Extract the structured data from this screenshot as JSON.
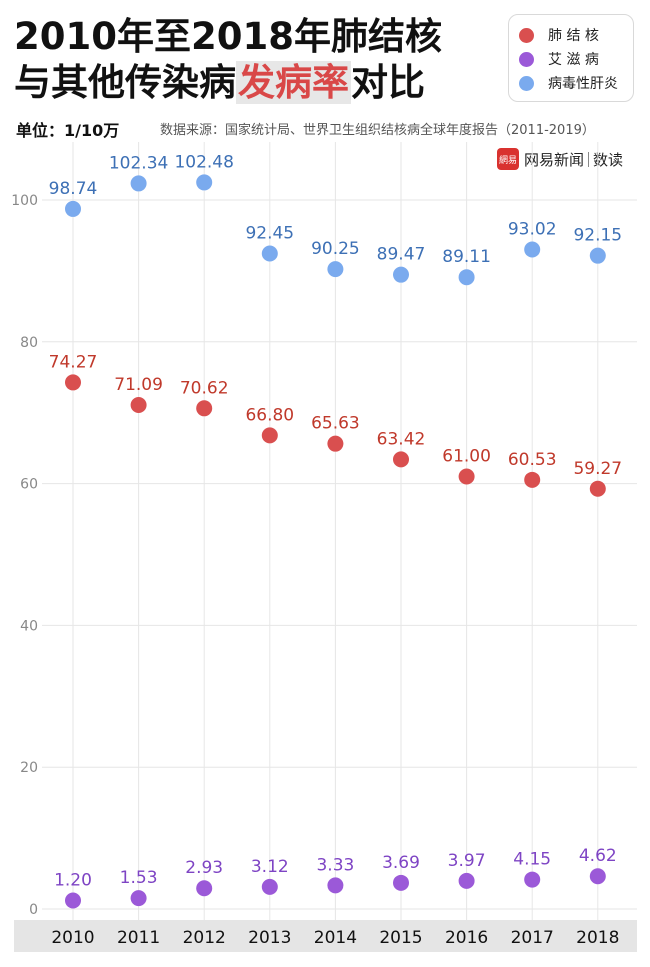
{
  "title": {
    "line1": "2010年至2018年肺结核",
    "line2_pre": "与其他传染病",
    "line2_highlight": "发病率",
    "line2_post": "对比"
  },
  "unit": "单位：1/10万",
  "source": "数据来源：国家统计局、世界卫生组织结核病全球年度报告（2011-2019）",
  "brand": {
    "logo": "網易",
    "name": "网易新闻",
    "section": "数读"
  },
  "legend": [
    {
      "label": "肺 结 核",
      "color": "#d94f4f"
    },
    {
      "label": "艾 滋 病",
      "color": "#9b59d8"
    },
    {
      "label": "病毒性肝炎",
      "color": "#7aaaee"
    }
  ],
  "chart_data": {
    "type": "scatter",
    "x": [
      "2010",
      "2011",
      "2012",
      "2013",
      "2014",
      "2015",
      "2016",
      "2017",
      "2018"
    ],
    "ylim": [
      0,
      110
    ],
    "yticks": [
      0,
      20,
      40,
      60,
      80,
      100
    ],
    "grid": true,
    "legend_position": "top-right",
    "series": [
      {
        "name": "病毒性肝炎",
        "color": "#7aaaee",
        "label_color": "#3d70b5",
        "values": [
          98.74,
          102.34,
          102.48,
          92.45,
          90.25,
          89.47,
          89.11,
          93.02,
          92.15
        ]
      },
      {
        "name": "肺结核",
        "color": "#d94f4f",
        "label_color": "#c0392b",
        "values": [
          74.27,
          71.09,
          70.62,
          66.8,
          65.63,
          63.42,
          61.0,
          60.53,
          59.27
        ]
      },
      {
        "name": "艾滋病",
        "color": "#9b59d8",
        "label_color": "#7e44c4",
        "values": [
          1.2,
          1.53,
          2.93,
          3.12,
          3.33,
          3.69,
          3.97,
          4.15,
          4.62
        ]
      }
    ]
  }
}
